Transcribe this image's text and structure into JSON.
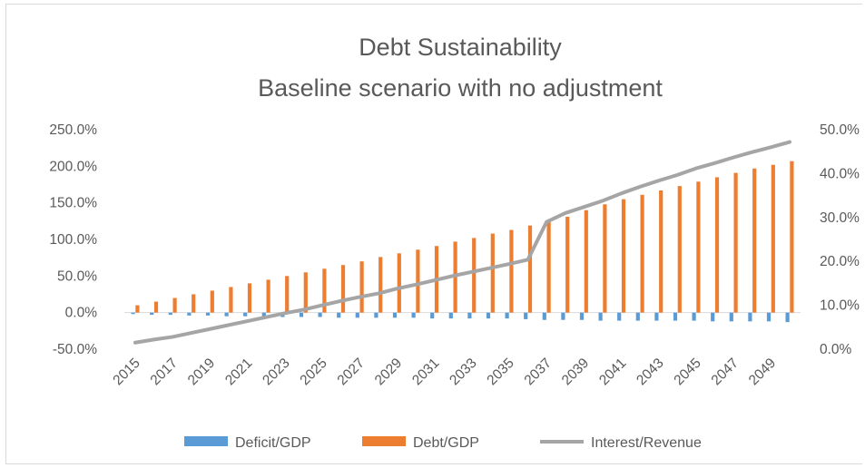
{
  "chart_data": {
    "type": "bar",
    "title": "Debt Sustainability",
    "subtitle": "Baseline scenario with no adjustment",
    "x": [
      2015,
      2016,
      2017,
      2018,
      2019,
      2020,
      2021,
      2022,
      2023,
      2024,
      2025,
      2026,
      2027,
      2028,
      2029,
      2030,
      2031,
      2032,
      2033,
      2034,
      2035,
      2036,
      2037,
      2038,
      2039,
      2040,
      2041,
      2042,
      2043,
      2044,
      2045,
      2046,
      2047,
      2048,
      2049,
      2050
    ],
    "x_tick_labels": [
      "2015",
      "2017",
      "2019",
      "2021",
      "2023",
      "2025",
      "2027",
      "2029",
      "2031",
      "2033",
      "2035",
      "2037",
      "2039",
      "2041",
      "2043",
      "2045",
      "2047",
      "2049"
    ],
    "y_left_ticks": [
      "250.0%",
      "200.0%",
      "150.0%",
      "100.0%",
      "50.0%",
      "0.0%",
      "-50.0%"
    ],
    "y_right_ticks": [
      "50.0%",
      "40.0%",
      "30.0%",
      "20.0%",
      "10.0%",
      "0.0%"
    ],
    "ylim_left": [
      -50,
      250
    ],
    "ylim_right": [
      0,
      50
    ],
    "series": [
      {
        "name": "Deficit/GDP",
        "axis": "left",
        "kind": "bar",
        "color": "#5b9bd5",
        "values": [
          -2,
          -3,
          -3,
          -4,
          -4,
          -5,
          -5,
          -6,
          -6,
          -6,
          -6,
          -7,
          -7,
          -7,
          -7,
          -7,
          -8,
          -8,
          -8,
          -8,
          -8,
          -9,
          -10,
          -10,
          -10,
          -11,
          -11,
          -11,
          -11,
          -11,
          -11,
          -12,
          -12,
          -12,
          -12,
          -13
        ]
      },
      {
        "name": "Debt/GDP",
        "axis": "left",
        "kind": "bar",
        "color": "#ed7d31",
        "values": [
          10,
          15,
          20,
          25,
          30,
          35,
          40,
          45,
          50,
          55,
          60,
          65,
          70,
          76,
          81,
          86,
          91,
          97,
          102,
          108,
          113,
          119,
          124,
          131,
          140,
          148,
          155,
          161,
          167,
          173,
          179,
          185,
          191,
          197,
          202,
          207
        ]
      },
      {
        "name": "Interest/Revenue",
        "axis": "right",
        "kind": "line",
        "color": "#a5a5a5",
        "values": [
          1.5,
          2.2,
          2.8,
          3.7,
          4.6,
          5.5,
          6.4,
          7.3,
          8.2,
          9.0,
          10.0,
          11.0,
          11.9,
          12.7,
          13.8,
          14.7,
          15.7,
          16.7,
          17.6,
          18.5,
          19.4,
          20.4,
          29.0,
          31.0,
          32.4,
          33.8,
          35.5,
          37.0,
          38.4,
          39.7,
          41.2,
          42.4,
          43.7,
          44.9,
          46.0,
          47.2
        ]
      }
    ],
    "legend_position": "bottom",
    "grid": false
  }
}
